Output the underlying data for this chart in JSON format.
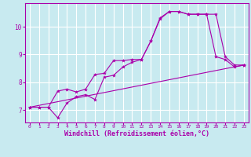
{
  "background_color": "#c8eaf0",
  "grid_color": "#aadddd",
  "line_color": "#aa00aa",
  "marker": "*",
  "xlabel": "Windchill (Refroidissement éolien,°C)",
  "xlabel_fontsize": 6.0,
  "ytick_labels": [
    "7",
    "8",
    "9",
    "10"
  ],
  "ytick_vals": [
    7,
    8,
    9,
    10
  ],
  "xtick_vals": [
    0,
    1,
    2,
    3,
    4,
    5,
    6,
    7,
    8,
    9,
    10,
    11,
    12,
    13,
    14,
    15,
    16,
    17,
    18,
    19,
    20,
    21,
    22,
    23
  ],
  "xlim": [
    -0.5,
    23.5
  ],
  "ylim": [
    6.55,
    10.85
  ],
  "line1_x": [
    0,
    1,
    2,
    3,
    4,
    5,
    6,
    7,
    8,
    9,
    10,
    11,
    12,
    13,
    14,
    15,
    16,
    17,
    18,
    19,
    20,
    21,
    22,
    23
  ],
  "line1_y": [
    7.1,
    7.1,
    7.1,
    6.72,
    7.25,
    7.48,
    7.55,
    7.38,
    8.18,
    8.25,
    8.55,
    8.72,
    8.82,
    9.48,
    10.28,
    10.55,
    10.55,
    10.45,
    10.45,
    10.45,
    8.92,
    8.82,
    8.55,
    8.62
  ],
  "line2_x": [
    0,
    1,
    2,
    3,
    4,
    5,
    6,
    7,
    8,
    9,
    10,
    11,
    12,
    13,
    14,
    15,
    16,
    17,
    18,
    19,
    20,
    21,
    22,
    23
  ],
  "line2_y": [
    7.1,
    7.1,
    7.1,
    7.68,
    7.75,
    7.65,
    7.75,
    8.28,
    8.32,
    8.78,
    8.78,
    8.82,
    8.82,
    9.48,
    10.32,
    10.55,
    10.55,
    10.45,
    10.45,
    10.45,
    10.45,
    8.92,
    8.62,
    8.62
  ],
  "line3_x": [
    0,
    23
  ],
  "line3_y": [
    7.1,
    8.62
  ]
}
